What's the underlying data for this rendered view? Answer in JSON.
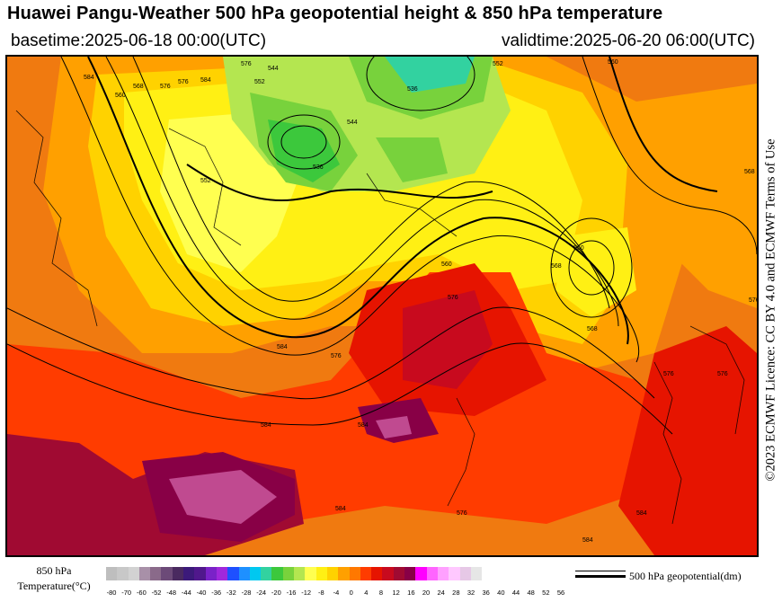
{
  "header": {
    "title": "Huawei Pangu-Weather 500 hPa geopotential height & 850 hPa temperature",
    "basetime": "basetime:2025-06-18 00:00(UTC)",
    "validtime": "validtime:2025-06-20 06:00(UTC)"
  },
  "credit": {
    "license": "©2023 ECMWF Licence: CC BY 4.0 and ECMWF Terms of Use"
  },
  "legend": {
    "label_line1": "850 hPa",
    "label_line2": "Temperature(°C)",
    "ticks": [
      "-80",
      "-70",
      "-60",
      "-52",
      "-48",
      "-44",
      "-40",
      "-36",
      "-32",
      "-28",
      "-24",
      "-20",
      "-16",
      "-12",
      "-8",
      "-4",
      "0",
      "4",
      "8",
      "12",
      "16",
      "20",
      "24",
      "28",
      "32",
      "36",
      "40",
      "44",
      "48",
      "52",
      "56"
    ],
    "colors": [
      "#bebebe",
      "#c8c8c8",
      "#d2d2d2",
      "#a890a8",
      "#8a6a8a",
      "#6c4a78",
      "#4a2a60",
      "#3c1a7a",
      "#50188c",
      "#7a22c8",
      "#a028dc",
      "#1e50ff",
      "#1e90ff",
      "#00c8f0",
      "#32d2a0",
      "#3cc83c",
      "#78d23c",
      "#b4e650",
      "#ffff50",
      "#fff014",
      "#ffd200",
      "#ffa000",
      "#ff7800",
      "#ff3c00",
      "#e61400",
      "#c80a1e",
      "#a00a32",
      "#880046",
      "#ff00ff",
      "#ff64ff",
      "#ffa0ff",
      "#ffc8ff",
      "#e6c8e6",
      "#e6e6e6"
    ],
    "contour_label": "500 hPa geopotential(dm)"
  },
  "map": {
    "contour_labels": [
      "536",
      "536",
      "544",
      "552",
      "560",
      "560",
      "568",
      "576",
      "584",
      "560",
      "568",
      "576",
      "584",
      "576",
      "544",
      "552",
      "552",
      "568",
      "576",
      "576",
      "584",
      "584",
      "576",
      "576",
      "560",
      "568",
      "576",
      "584",
      "576",
      "584",
      "584",
      "584"
    ]
  }
}
